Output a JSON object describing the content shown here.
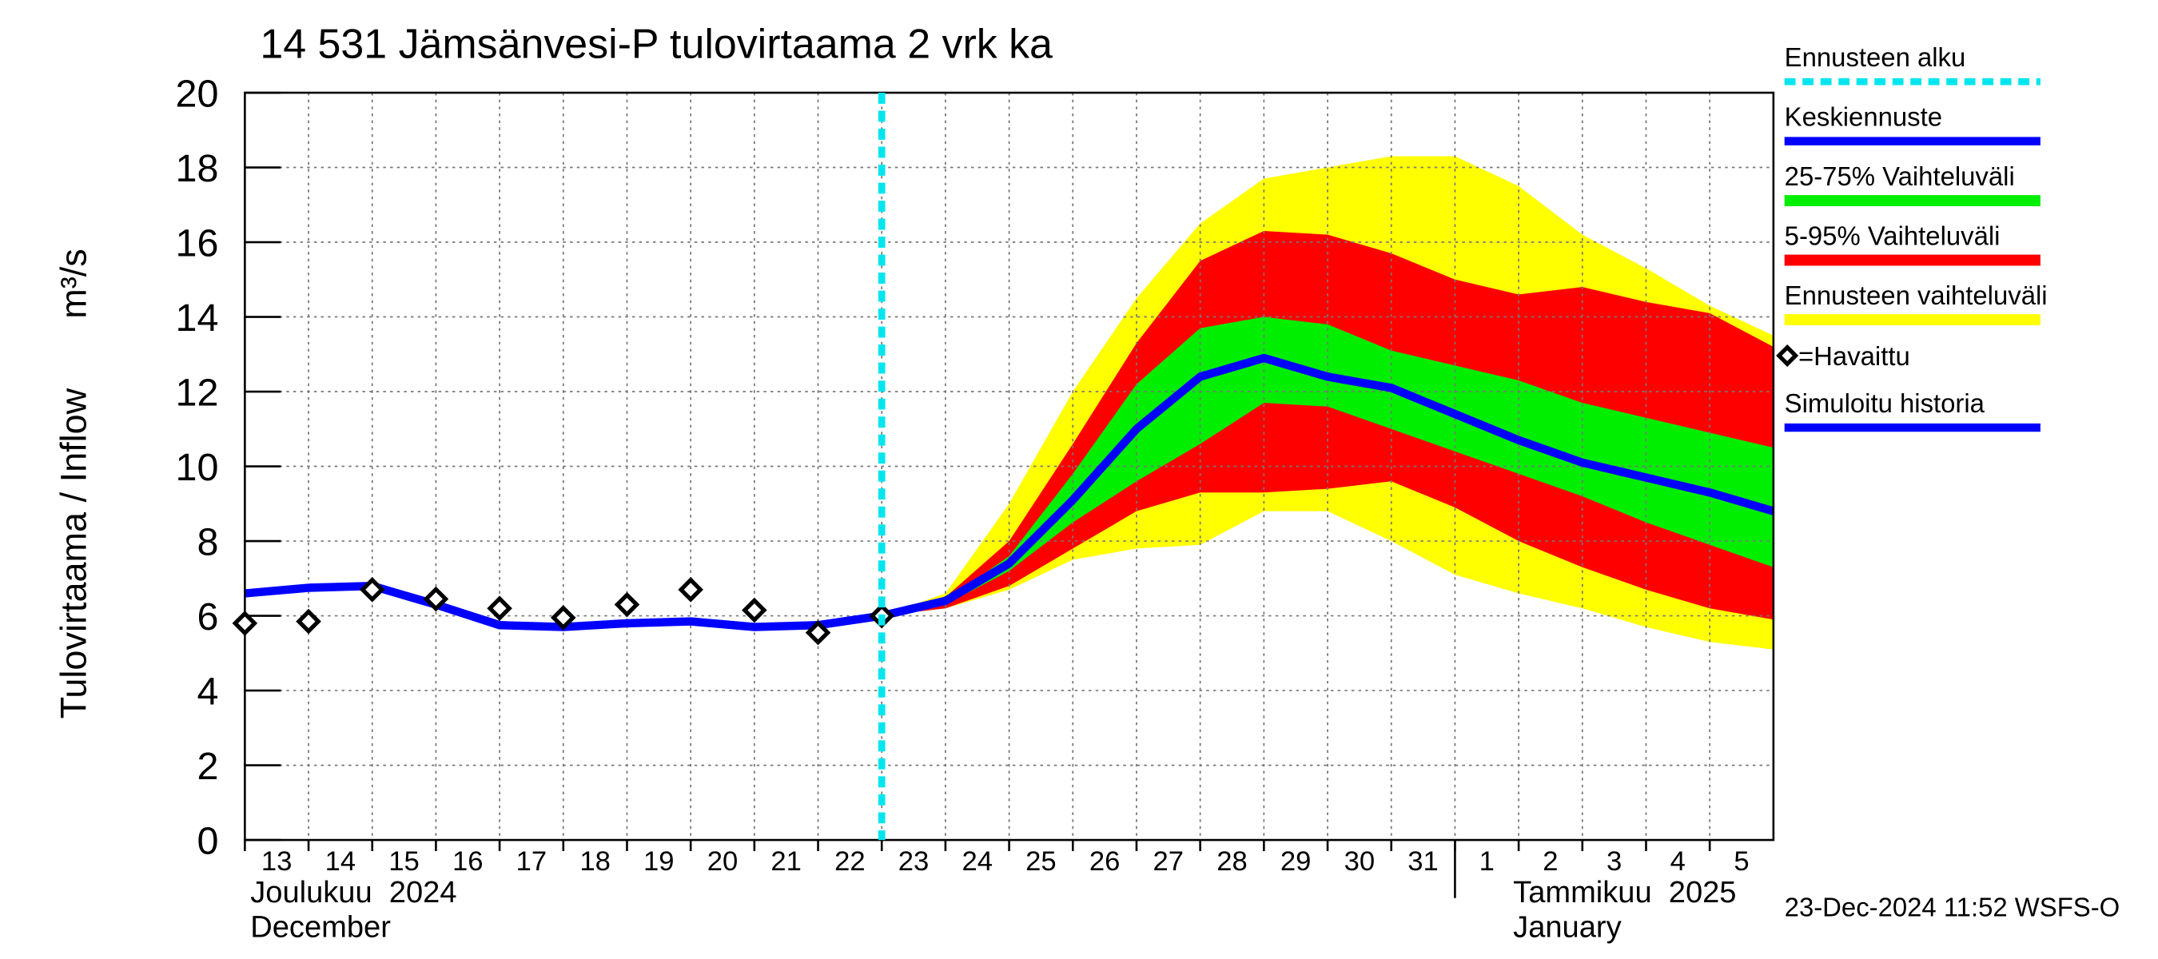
{
  "chart_data": {
    "type": "hydrograph",
    "title": "14 531 Jämsänvesi-P tulovirtaama 2 vrk ka",
    "ylabel": "Tulovirtaama / Inflow",
    "yunit": "m³/s",
    "month_labels": [
      [
        "Joulukuu  2024",
        "December"
      ],
      [
        "Tammikuu  2025",
        "January"
      ]
    ],
    "footer": "23-Dec-2024 11:52 WSFS-O",
    "x": [
      "2024-12-13",
      "2024-12-14",
      "2024-12-15",
      "2024-12-16",
      "2024-12-17",
      "2024-12-18",
      "2024-12-19",
      "2024-12-20",
      "2024-12-21",
      "2024-12-22",
      "2024-12-23",
      "2024-12-24",
      "2024-12-25",
      "2024-12-26",
      "2024-12-27",
      "2024-12-28",
      "2024-12-29",
      "2024-12-30",
      "2024-12-31",
      "2025-01-01",
      "2025-01-02",
      "2025-01-03",
      "2025-01-04",
      "2025-01-05",
      "2025-01-06"
    ],
    "xlim": [
      "2024-12-13",
      "2025-01-06"
    ],
    "xticks": [
      {
        "value": "2024-12-13",
        "label": "13"
      },
      {
        "value": "2024-12-14",
        "label": "14"
      },
      {
        "value": "2024-12-15",
        "label": "15"
      },
      {
        "value": "2024-12-16",
        "label": "16"
      },
      {
        "value": "2024-12-17",
        "label": "17"
      },
      {
        "value": "2024-12-18",
        "label": "18"
      },
      {
        "value": "2024-12-19",
        "label": "19"
      },
      {
        "value": "2024-12-20",
        "label": "20"
      },
      {
        "value": "2024-12-21",
        "label": "21"
      },
      {
        "value": "2024-12-22",
        "label": "22"
      },
      {
        "value": "2024-12-23",
        "label": "23"
      },
      {
        "value": "2024-12-24",
        "label": "24"
      },
      {
        "value": "2024-12-25",
        "label": "25"
      },
      {
        "value": "2024-12-26",
        "label": "26"
      },
      {
        "value": "2024-12-27",
        "label": "27"
      },
      {
        "value": "2024-12-28",
        "label": "28"
      },
      {
        "value": "2024-12-29",
        "label": "29"
      },
      {
        "value": "2024-12-30",
        "label": "30"
      },
      {
        "value": "2024-12-31",
        "label": "31"
      },
      {
        "value": "2025-01-01",
        "label": "1"
      },
      {
        "value": "2025-01-02",
        "label": "2"
      },
      {
        "value": "2025-01-03",
        "label": "3"
      },
      {
        "value": "2025-01-04",
        "label": "4"
      },
      {
        "value": "2025-01-05",
        "label": "5"
      }
    ],
    "ylim": [
      0,
      20
    ],
    "yticks": [
      0,
      2,
      4,
      6,
      8,
      10,
      12,
      14,
      16,
      18,
      20
    ],
    "grid": true,
    "forecast_start": {
      "name": "Ennusteen alku",
      "color": "#00e5ee",
      "x": "2024-12-23"
    },
    "series": [
      {
        "name": "Keskiennuste",
        "kind": "line",
        "color": "#0000ff",
        "values": [
          null,
          null,
          null,
          null,
          null,
          null,
          null,
          null,
          null,
          null,
          6.0,
          6.4,
          7.4,
          9.1,
          11.0,
          12.4,
          12.9,
          12.4,
          12.1,
          11.4,
          10.7,
          10.1,
          9.7,
          9.3,
          8.8
        ]
      },
      {
        "name": "25-75% Vaihteluväli",
        "kind": "band",
        "color": "#00ee00",
        "lower": [
          null,
          null,
          null,
          null,
          null,
          null,
          null,
          null,
          null,
          null,
          6.0,
          6.3,
          7.2,
          8.5,
          9.6,
          10.6,
          11.7,
          11.6,
          11.0,
          10.4,
          9.8,
          9.2,
          8.5,
          7.9,
          7.3
        ],
        "upper": [
          null,
          null,
          null,
          null,
          null,
          null,
          null,
          null,
          null,
          null,
          6.0,
          6.4,
          7.6,
          9.8,
          12.2,
          13.7,
          14.0,
          13.8,
          13.1,
          12.7,
          12.3,
          11.7,
          11.3,
          10.9,
          10.5
        ]
      },
      {
        "name": "5-95% Vaihteluväli",
        "kind": "band",
        "color": "#ff0000",
        "lower": [
          null,
          null,
          null,
          null,
          null,
          null,
          null,
          null,
          null,
          null,
          6.0,
          6.2,
          6.8,
          7.8,
          8.8,
          9.3,
          9.3,
          9.4,
          9.6,
          8.9,
          8.0,
          7.3,
          6.7,
          6.2,
          5.9
        ],
        "upper": [
          null,
          null,
          null,
          null,
          null,
          null,
          null,
          null,
          null,
          null,
          6.0,
          6.5,
          8.0,
          10.6,
          13.3,
          15.5,
          16.3,
          16.2,
          15.7,
          15.0,
          14.6,
          14.8,
          14.4,
          14.1,
          13.2
        ]
      },
      {
        "name": "Ennusteen vaihteluväli",
        "kind": "band",
        "color": "#ffff00",
        "lower": [
          null,
          null,
          null,
          null,
          null,
          null,
          null,
          null,
          null,
          null,
          6.0,
          6.2,
          6.7,
          7.5,
          7.8,
          7.9,
          8.8,
          8.8,
          8.0,
          7.1,
          6.6,
          6.2,
          5.7,
          5.3,
          5.1
        ],
        "upper": [
          null,
          null,
          null,
          null,
          null,
          null,
          null,
          null,
          null,
          null,
          6.0,
          6.6,
          9.0,
          12.0,
          14.5,
          16.5,
          17.7,
          18.0,
          18.3,
          18.3,
          17.5,
          16.2,
          15.3,
          14.3,
          13.5
        ]
      },
      {
        "name": "=Havaittu",
        "kind": "points",
        "color": "#000000",
        "values": [
          5.8,
          5.85,
          6.7,
          6.45,
          6.2,
          5.95,
          6.3,
          6.7,
          6.15,
          5.55,
          6.0,
          null,
          null,
          null,
          null,
          null,
          null,
          null,
          null,
          null,
          null,
          null,
          null,
          null,
          null
        ]
      },
      {
        "name": "Simuloitu historia",
        "kind": "line",
        "color": "#0000ff",
        "values": [
          6.6,
          6.75,
          6.8,
          6.3,
          5.75,
          5.7,
          5.8,
          5.85,
          5.7,
          5.75,
          6.0,
          null,
          null,
          null,
          null,
          null,
          null,
          null,
          null,
          null,
          null,
          null,
          null,
          null,
          null
        ]
      }
    ]
  }
}
